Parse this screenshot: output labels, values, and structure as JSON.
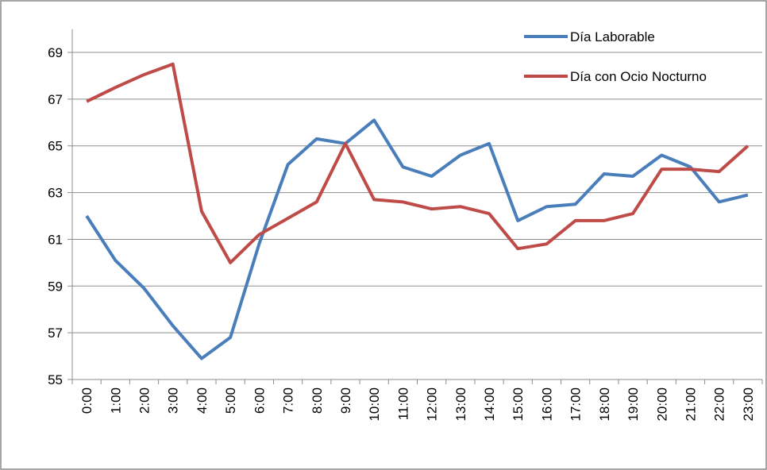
{
  "chart_data": {
    "type": "line",
    "categories": [
      "0:00",
      "1:00",
      "2:00",
      "3:00",
      "4:00",
      "5:00",
      "6:00",
      "7:00",
      "8:00",
      "9:00",
      "10:00",
      "11:00",
      "12:00",
      "13:00",
      "14:00",
      "15:00",
      "16:00",
      "17:00",
      "18:00",
      "19:00",
      "20:00",
      "21:00",
      "22:00",
      "23:00"
    ],
    "series": [
      {
        "name": "Día Laborable",
        "color": "#4a7ebb",
        "values": [
          62.0,
          60.1,
          58.9,
          57.3,
          55.9,
          56.8,
          60.8,
          64.2,
          65.3,
          65.1,
          66.1,
          64.1,
          63.7,
          64.6,
          65.1,
          61.8,
          62.4,
          62.5,
          63.8,
          63.7,
          64.6,
          64.1,
          62.6,
          62.9
        ]
      },
      {
        "name": "Día con Ocio Nocturno",
        "color": "#be4b48",
        "values": [
          66.9,
          67.5,
          68.05,
          68.5,
          62.2,
          60.0,
          61.2,
          61.9,
          62.6,
          65.1,
          62.7,
          62.6,
          62.3,
          62.4,
          62.1,
          60.6,
          60.8,
          61.8,
          61.8,
          62.1,
          64.0,
          64.0,
          63.9,
          65.0
        ]
      }
    ],
    "ylim": [
      55,
      70
    ],
    "yticks": [
      55,
      57,
      59,
      61,
      63,
      65,
      67,
      69
    ],
    "grid": true,
    "legend": "top-right"
  }
}
